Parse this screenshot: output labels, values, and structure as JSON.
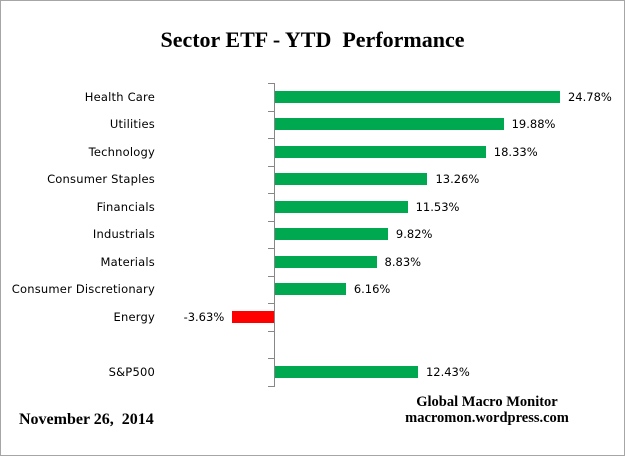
{
  "title": "Sector ETF - YTD  Performance",
  "chart_data": {
    "type": "bar",
    "orientation": "horizontal",
    "title": "Sector ETF - YTD  Performance",
    "categories": [
      "Health Care",
      "Utilities",
      "Technology",
      "Consumer Staples",
      "Financials",
      "Industrials",
      "Materials",
      "Consumer Discretionary",
      "Energy",
      "",
      "S&P500"
    ],
    "values": [
      24.78,
      19.88,
      18.33,
      13.26,
      11.53,
      9.82,
      8.83,
      6.16,
      -3.63,
      null,
      12.43
    ],
    "value_labels": [
      "24.78%",
      "19.88%",
      "18.33%",
      "13.26%",
      "11.53%",
      "9.82%",
      "8.83%",
      "6.16%",
      "-3.63%",
      "",
      "12.43%"
    ],
    "baseline": 0,
    "positive_color": "#00A94F",
    "negative_color": "#FF0000",
    "axis_color": "#878787",
    "grid": false,
    "legend": false
  },
  "footer": {
    "date": "November 26,  2014",
    "source_line1": "Global Macro Monitor",
    "source_line2": "macromon.wordpress.com"
  }
}
